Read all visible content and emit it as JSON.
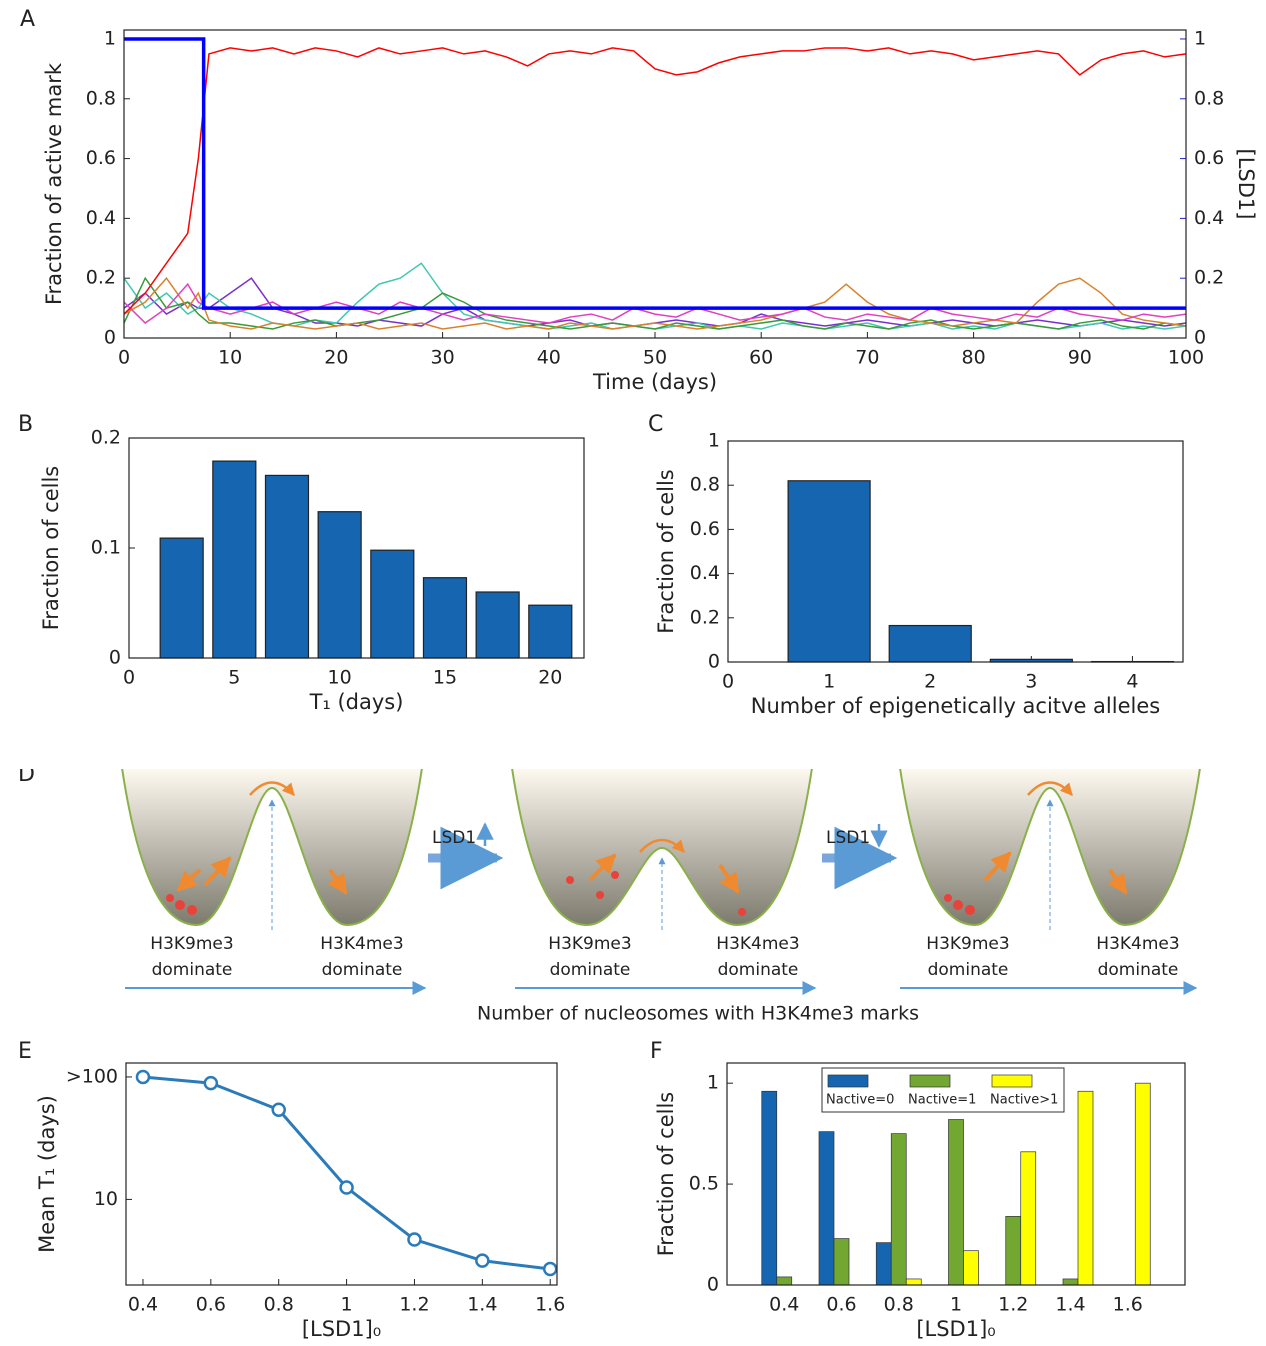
{
  "chart_data": [
    {
      "type": "line",
      "panel_label": "A",
      "xlabel": "Time (days)",
      "ylabel": "Fraction of active mark",
      "y2label": "[LSD1]",
      "xlim": [
        0,
        100
      ],
      "xticks": [
        0,
        10,
        20,
        30,
        40,
        50,
        60,
        70,
        80,
        90,
        100
      ],
      "ylim": [
        0,
        1.03
      ],
      "yticks": [
        0,
        0.2,
        0.4,
        0.6,
        0.8,
        1
      ],
      "y2lim": [
        0,
        1.03
      ],
      "y2ticks": [
        0,
        0.2,
        0.4,
        0.6,
        0.8,
        1
      ],
      "x": [
        0,
        2,
        4,
        6,
        7,
        8,
        10,
        12,
        14,
        16,
        18,
        20,
        22,
        24,
        26,
        28,
        30,
        32,
        34,
        36,
        38,
        40,
        42,
        44,
        46,
        48,
        50,
        52,
        54,
        56,
        58,
        60,
        62,
        64,
        66,
        68,
        70,
        72,
        74,
        76,
        78,
        80,
        82,
        84,
        86,
        88,
        90,
        92,
        94,
        96,
        98,
        100
      ],
      "series": [
        {
          "color": "#7b2fd0",
          "values": [
            0.1,
            0.15,
            0.08,
            0.12,
            0.1,
            0.1,
            0.15,
            0.2,
            0.1,
            0.08,
            0.05,
            0.05,
            0.04,
            0.06,
            0.05,
            0.04,
            0.08,
            0.1,
            0.06,
            0.05,
            0.04,
            0.05,
            0.06,
            0.04,
            0.05,
            0.04,
            0.05,
            0.06,
            0.05,
            0.04,
            0.05,
            0.08,
            0.06,
            0.05,
            0.04,
            0.05,
            0.06,
            0.05,
            0.04,
            0.05,
            0.06,
            0.05,
            0.04,
            0.05,
            0.06,
            0.05,
            0.04,
            0.05,
            0.06,
            0.05,
            0.04,
            0.05
          ]
        },
        {
          "color": "#40c8b0",
          "values": [
            0.2,
            0.1,
            0.15,
            0.08,
            0.1,
            0.15,
            0.1,
            0.08,
            0.05,
            0.04,
            0.06,
            0.05,
            0.12,
            0.18,
            0.2,
            0.25,
            0.15,
            0.08,
            0.06,
            0.05,
            0.04,
            0.03,
            0.04,
            0.05,
            0.03,
            0.04,
            0.03,
            0.04,
            0.05,
            0.03,
            0.04,
            0.03,
            0.05,
            0.04,
            0.03,
            0.04,
            0.05,
            0.03,
            0.04,
            0.05,
            0.03,
            0.04,
            0.03,
            0.05,
            0.04,
            0.03,
            0.04,
            0.05,
            0.03,
            0.04,
            0.03,
            0.04
          ]
        },
        {
          "color": "#3a9a3a",
          "values": [
            0.05,
            0.2,
            0.1,
            0.12,
            0.08,
            0.05,
            0.05,
            0.04,
            0.03,
            0.05,
            0.06,
            0.04,
            0.05,
            0.06,
            0.08,
            0.1,
            0.15,
            0.12,
            0.08,
            0.06,
            0.05,
            0.04,
            0.03,
            0.04,
            0.05,
            0.04,
            0.03,
            0.05,
            0.04,
            0.03,
            0.04,
            0.05,
            0.06,
            0.04,
            0.03,
            0.05,
            0.04,
            0.03,
            0.05,
            0.06,
            0.04,
            0.03,
            0.04,
            0.05,
            0.04,
            0.03,
            0.05,
            0.06,
            0.04,
            0.03,
            0.05,
            0.04
          ]
        },
        {
          "color": "#d9822b",
          "values": [
            0.08,
            0.12,
            0.2,
            0.1,
            0.15,
            0.06,
            0.04,
            0.03,
            0.05,
            0.04,
            0.03,
            0.04,
            0.05,
            0.03,
            0.04,
            0.05,
            0.03,
            0.04,
            0.05,
            0.03,
            0.04,
            0.03,
            0.05,
            0.04,
            0.03,
            0.04,
            0.05,
            0.04,
            0.03,
            0.04,
            0.05,
            0.06,
            0.08,
            0.1,
            0.12,
            0.18,
            0.12,
            0.08,
            0.06,
            0.05,
            0.04,
            0.05,
            0.06,
            0.05,
            0.12,
            0.18,
            0.2,
            0.15,
            0.08,
            0.06,
            0.05,
            0.04
          ]
        },
        {
          "color": "#e040c0",
          "values": [
            0.12,
            0.05,
            0.1,
            0.18,
            0.12,
            0.1,
            0.08,
            0.1,
            0.12,
            0.08,
            0.1,
            0.12,
            0.1,
            0.08,
            0.12,
            0.1,
            0.08,
            0.06,
            0.08,
            0.07,
            0.06,
            0.05,
            0.07,
            0.08,
            0.06,
            0.1,
            0.08,
            0.07,
            0.1,
            0.08,
            0.06,
            0.07,
            0.08,
            0.1,
            0.07,
            0.06,
            0.08,
            0.07,
            0.06,
            0.1,
            0.08,
            0.07,
            0.06,
            0.08,
            0.07,
            0.1,
            0.08,
            0.07,
            0.06,
            0.08,
            0.07,
            0.08
          ]
        },
        {
          "color": "#ff0000",
          "values": [
            0.08,
            0.15,
            0.25,
            0.35,
            0.6,
            0.95,
            0.97,
            0.96,
            0.97,
            0.95,
            0.97,
            0.96,
            0.94,
            0.97,
            0.95,
            0.96,
            0.97,
            0.95,
            0.96,
            0.94,
            0.91,
            0.95,
            0.96,
            0.95,
            0.97,
            0.96,
            0.9,
            0.88,
            0.89,
            0.92,
            0.94,
            0.95,
            0.96,
            0.96,
            0.97,
            0.97,
            0.96,
            0.97,
            0.95,
            0.96,
            0.95,
            0.93,
            0.94,
            0.95,
            0.96,
            0.95,
            0.88,
            0.93,
            0.95,
            0.96,
            0.94,
            0.95
          ]
        },
        {
          "color": "#0000ff",
          "axis": "y2",
          "x": [
            0,
            7.5,
            7.5,
            100
          ],
          "values": [
            1,
            1,
            0.1,
            0.1
          ]
        }
      ]
    },
    {
      "type": "bar",
      "panel_label": "B",
      "xlabel": "T₁ (days)",
      "ylabel": "Fraction of cells",
      "color": "#1565b0",
      "xlim": [
        0,
        21.6
      ],
      "xticks": [
        0,
        5,
        10,
        15,
        20
      ],
      "ylim": [
        0,
        0.2
      ],
      "yticks": [
        0,
        0.1,
        0.2
      ],
      "x": [
        2.5,
        5,
        7.5,
        10,
        12.5,
        15,
        17.5,
        20
      ],
      "values": [
        0.109,
        0.179,
        0.166,
        0.133,
        0.098,
        0.073,
        0.06,
        0.048
      ]
    },
    {
      "type": "bar",
      "panel_label": "C",
      "xlabel": "Number of epigenetically acitve alleles",
      "ylabel": "Fraction of cells",
      "color": "#1565b0",
      "xlim": [
        0,
        4.5
      ],
      "xticks": [
        0,
        1,
        2,
        3,
        4
      ],
      "ylim": [
        0,
        1
      ],
      "yticks": [
        0,
        0.2,
        0.4,
        0.6,
        0.8,
        1
      ],
      "x": [
        1,
        2,
        3,
        4
      ],
      "values": [
        0.82,
        0.165,
        0.012,
        0.002
      ]
    },
    {
      "type": "line",
      "panel_label": "E",
      "xlabel": "[LSD1]₀",
      "ylabel": "Mean T₁    (days)",
      "log_y": true,
      "markers": true,
      "xlim": [
        0.35,
        1.62
      ],
      "xticks": [
        0.4,
        0.6,
        0.8,
        1,
        1.2,
        1.4,
        1.6
      ],
      "ylim": [
        2,
        130
      ],
      "yticks": [
        10,
        {
          "value": 100,
          "label": ">100"
        }
      ],
      "x": [
        0.4,
        0.6,
        0.8,
        1,
        1.2,
        1.4,
        1.6
      ],
      "series": [
        {
          "color": "#2b7bba",
          "values": [
            100,
            89,
            54,
            12.5,
            4.7,
            3.16,
            2.7
          ]
        }
      ]
    },
    {
      "type": "bar",
      "panel_label": "F",
      "xlabel": "[LSD1]₀",
      "ylabel": "Fraction of cells",
      "legend": "top",
      "ylim": [
        0,
        1.1
      ],
      "yticks": [
        0,
        0.5,
        1
      ],
      "categories": [
        "0.4",
        "0.6",
        "0.8",
        "1",
        "1.2",
        "1.4",
        "1.6"
      ],
      "series": [
        {
          "name": "Nactive=0",
          "color": "#1565b0",
          "values": [
            0.96,
            0.76,
            0.21,
            0,
            0,
            0,
            0
          ]
        },
        {
          "name": "Nactive=1",
          "color": "#72a832",
          "values": [
            0.04,
            0.23,
            0.75,
            0.82,
            0.34,
            0.03,
            0
          ]
        },
        {
          "name": "Nactive>1",
          "color": "#ffff00",
          "values": [
            0,
            0,
            0.03,
            0.17,
            0.66,
            0.96,
            1
          ]
        }
      ]
    }
  ],
  "diagram": {
    "panel_label": "D",
    "wells": [
      {
        "left": [
          "H3K9me3",
          "dominate"
        ],
        "right": [
          "H3K4me3",
          "dominate"
        ]
      },
      {
        "left": [
          "H3K9me3",
          "dominate"
        ],
        "right": [
          "H3K4me3",
          "dominate"
        ]
      },
      {
        "left": [
          "H3K9me3",
          "dominate"
        ],
        "right": [
          "H3K4me3",
          "dominate"
        ]
      }
    ],
    "transitions": [
      "LSD1",
      "LSD1"
    ],
    "axis_label": "Number of nucleosomes with H3K4me3 marks"
  }
}
